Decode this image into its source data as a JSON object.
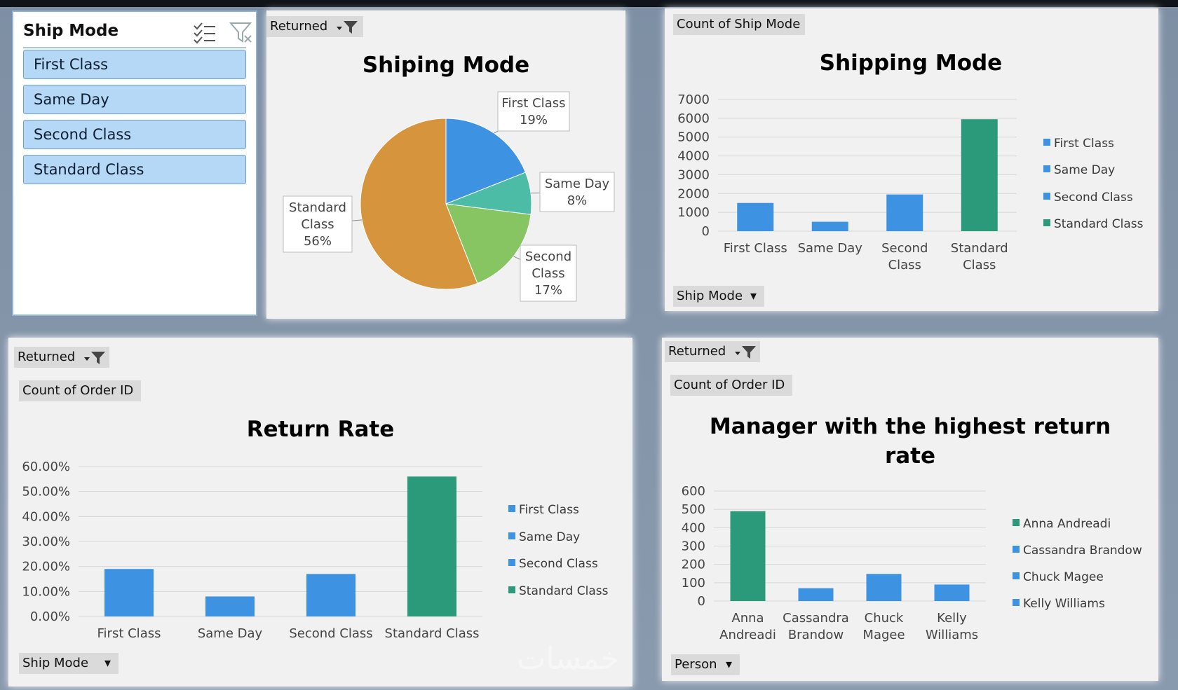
{
  "colors": {
    "blue": "#3d93e1",
    "green": "#2b9a7a",
    "orange": "#d6953c",
    "teal": "#4cbca6",
    "lightgreen": "#87c562"
  },
  "slicer": {
    "title": "Ship Mode",
    "items": [
      {
        "label": "First Class"
      },
      {
        "label": "Same Day"
      },
      {
        "label": "Second Class"
      },
      {
        "label": "Standard Class"
      }
    ]
  },
  "pie_panel": {
    "filter_label": "Returned"
  },
  "ship_bar_panel": {
    "value_label": "Count of Ship Mode",
    "axis_button": "Ship Mode"
  },
  "return_panel": {
    "filter_label": "Returned",
    "value_label": "Count of Order ID",
    "axis_button": "Ship Mode"
  },
  "manager_panel": {
    "filter_label": "Returned",
    "value_label": "Count of Order ID",
    "axis_button": "Person"
  },
  "watermark": "خمسات",
  "chart_data": [
    {
      "type": "pie",
      "title": "Shiping Mode",
      "labels": [
        "First Class",
        "Same Day",
        "Second Class",
        "Standard Class"
      ],
      "values": [
        19,
        8,
        17,
        56
      ],
      "data_labels": [
        {
          "lines": [
            "First Class",
            "19%"
          ]
        },
        {
          "lines": [
            "Same Day",
            "8%"
          ]
        },
        {
          "lines": [
            "Second",
            "Class",
            "17%"
          ]
        },
        {
          "lines": [
            "Standard",
            "Class",
            "56%"
          ]
        }
      ]
    },
    {
      "type": "bar",
      "title": "Shipping Mode",
      "categories": [
        [
          "First Class"
        ],
        [
          "Same Day"
        ],
        [
          "Second",
          "Class"
        ],
        [
          "Standard",
          "Class"
        ]
      ],
      "values": [
        1500,
        500,
        1950,
        5950
      ],
      "ylim": [
        0,
        7000
      ],
      "ticks": [
        0,
        1000,
        2000,
        3000,
        4000,
        5000,
        6000,
        7000
      ],
      "tick_labels": [
        "0",
        "1000",
        "2000",
        "3000",
        "4000",
        "5000",
        "6000",
        "7000"
      ],
      "legend": [
        "First Class",
        "Same Day",
        "Second Class",
        "Standard Class"
      ],
      "legend_position": "right",
      "grid": true
    },
    {
      "type": "bar",
      "title": "Return Rate",
      "categories": [
        [
          "First Class"
        ],
        [
          "Same Day"
        ],
        [
          "Second Class"
        ],
        [
          "Standard Class"
        ]
      ],
      "values": [
        19,
        8,
        17,
        56
      ],
      "ylim": [
        0,
        60
      ],
      "ticks": [
        0,
        10,
        20,
        30,
        40,
        50,
        60
      ],
      "tick_labels": [
        "0.00%",
        "10.00%",
        "20.00%",
        "30.00%",
        "40.00%",
        "50.00%",
        "60.00%"
      ],
      "legend": [
        "First Class",
        "Same Day",
        "Second Class",
        "Standard Class"
      ],
      "legend_position": "right",
      "grid": true
    },
    {
      "type": "bar",
      "title": "Manager with the highest return rate",
      "title_lines": [
        "Manager with the highest return",
        "rate"
      ],
      "categories": [
        [
          "Anna",
          "Andreadi"
        ],
        [
          "Cassandra",
          "Brandow"
        ],
        [
          "Chuck",
          "Magee"
        ],
        [
          "Kelly",
          "Williams"
        ]
      ],
      "values": [
        490,
        70,
        148,
        90
      ],
      "ylim": [
        0,
        600
      ],
      "ticks": [
        0,
        100,
        200,
        300,
        400,
        500,
        600
      ],
      "tick_labels": [
        "0",
        "100",
        "200",
        "300",
        "400",
        "500",
        "600"
      ],
      "legend": [
        "Anna Andreadi",
        "Cassandra Brandow",
        "Chuck Magee",
        "Kelly Williams"
      ],
      "legend_position": "right",
      "grid": true
    }
  ]
}
